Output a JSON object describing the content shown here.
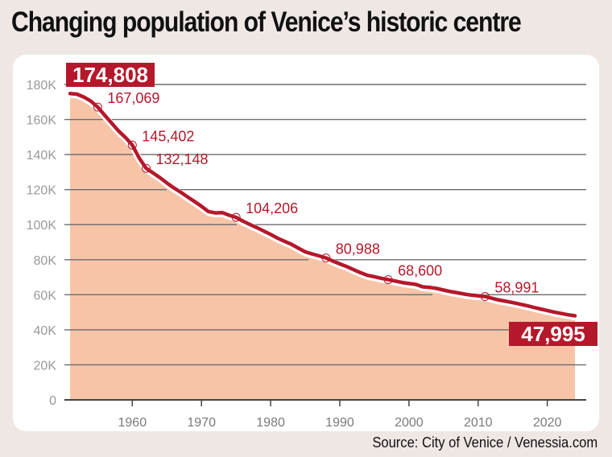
{
  "title": "Changing population of Venice’s historic centre",
  "source": "Source: City of Venice / Venessia.com",
  "colors": {
    "line": "#b5182b",
    "area": "#f7c4a8",
    "grid": "#6b6b6b",
    "highlight_bg": "#b5182b",
    "highlight_text": "#ffffff",
    "background": "#efe7e4",
    "panel": "#ffffff"
  },
  "chart_data": {
    "type": "area",
    "title": "Changing population of Venice’s historic centre",
    "xlabel": "",
    "ylabel": "",
    "xlim": [
      1951,
      2024
    ],
    "ylim": [
      0,
      180000
    ],
    "grid": true,
    "x_ticks": [
      1960,
      1970,
      1980,
      1990,
      2000,
      2010,
      2020
    ],
    "x_tick_labels": [
      "1960",
      "1970",
      "1980",
      "1990",
      "2000",
      "2010",
      "2020"
    ],
    "y_ticks": [
      0,
      20000,
      40000,
      60000,
      80000,
      100000,
      120000,
      140000,
      160000,
      180000
    ],
    "y_tick_labels": [
      "0",
      "20K",
      "40K",
      "60K",
      "80K",
      "100K",
      "120K",
      "140K",
      "160K",
      "180K"
    ],
    "series": [
      {
        "name": "Population",
        "x": [
          1951,
          1952,
          1953,
          1954,
          1955,
          1956,
          1957,
          1958,
          1959,
          1960,
          1961,
          1962,
          1963,
          1964,
          1965,
          1966,
          1967,
          1968,
          1969,
          1970,
          1971,
          1972,
          1973,
          1974,
          1975,
          1976,
          1977,
          1978,
          1979,
          1980,
          1981,
          1982,
          1983,
          1984,
          1985,
          1986,
          1987,
          1988,
          1989,
          1990,
          1991,
          1992,
          1993,
          1994,
          1995,
          1996,
          1997,
          1998,
          1999,
          2000,
          2001,
          2002,
          2003,
          2004,
          2005,
          2006,
          2007,
          2008,
          2009,
          2010,
          2011,
          2012,
          2013,
          2014,
          2015,
          2016,
          2017,
          2018,
          2019,
          2020,
          2021,
          2022,
          2023,
          2024
        ],
        "values": [
          174808,
          174500,
          172800,
          170500,
          167069,
          162500,
          158000,
          153500,
          149800,
          145402,
          138000,
          132148,
          129500,
          126800,
          123800,
          121000,
          118500,
          115800,
          113200,
          110500,
          107500,
          106700,
          106900,
          105400,
          104206,
          102000,
          100100,
          98300,
          96400,
          94400,
          92300,
          90500,
          88800,
          86600,
          84500,
          83300,
          82200,
          80988,
          79200,
          77600,
          76100,
          74300,
          72600,
          71100,
          70300,
          69400,
          68600,
          67800,
          67000,
          66400,
          65900,
          64500,
          64200,
          63600,
          62700,
          61800,
          61100,
          60400,
          59800,
          59400,
          58991,
          58000,
          57000,
          56300,
          55500,
          54700,
          53800,
          52800,
          51900,
          51000,
          50100,
          49300,
          48600,
          47995
        ]
      }
    ],
    "annotations": [
      {
        "x": 1951,
        "value": 174808,
        "label": "174,808",
        "style": "highlight"
      },
      {
        "x": 1955,
        "value": 167069,
        "label": "167,069",
        "style": "marker"
      },
      {
        "x": 1960,
        "value": 145402,
        "label": "145,402",
        "style": "marker"
      },
      {
        "x": 1962,
        "value": 132148,
        "label": "132,148",
        "style": "marker"
      },
      {
        "x": 1975,
        "value": 104206,
        "label": "104,206",
        "style": "marker"
      },
      {
        "x": 1988,
        "value": 80988,
        "label": "80,988",
        "style": "marker"
      },
      {
        "x": 1997,
        "value": 68600,
        "label": "68,600",
        "style": "marker"
      },
      {
        "x": 2011,
        "value": 58991,
        "label": "58,991",
        "style": "marker"
      },
      {
        "x": 2024,
        "value": 47995,
        "label": "47,995",
        "style": "highlight"
      }
    ]
  }
}
